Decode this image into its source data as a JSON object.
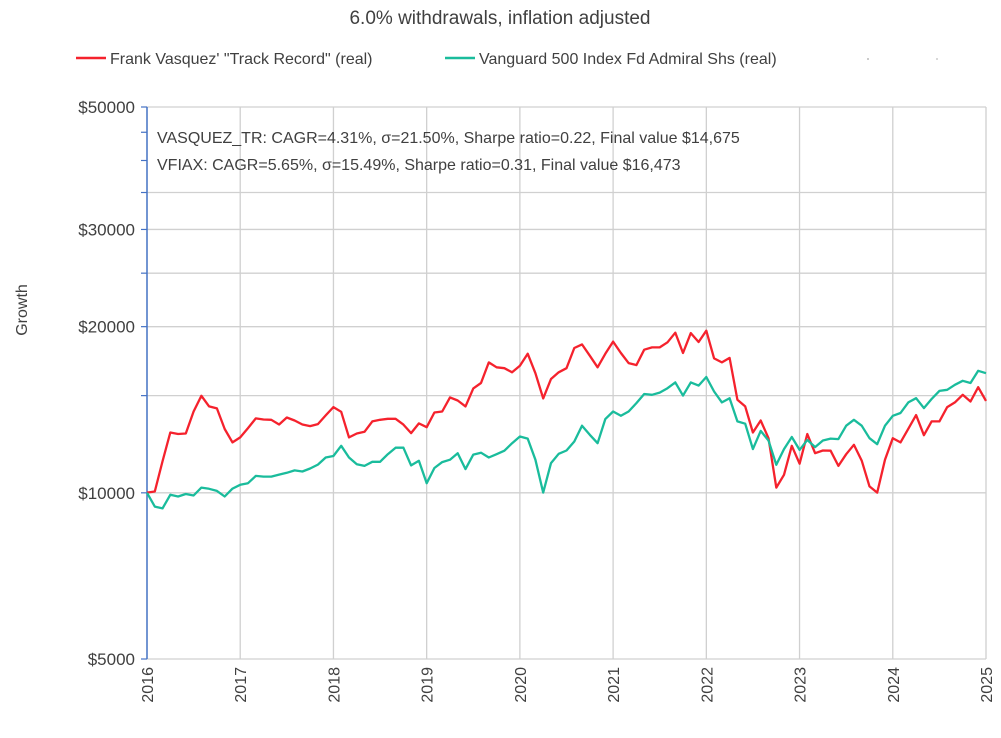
{
  "chart_data": {
    "type": "line",
    "title": "6.0% withdrawals, inflation adjusted",
    "ylabel": "Growth",
    "xlabel": "",
    "y_scale": "log",
    "ylim": [
      5000,
      50000
    ],
    "xlim": [
      "2016-01",
      "2025-01"
    ],
    "grid": true,
    "legend_position": "top",
    "y_ticks": [
      {
        "value": 5000,
        "label": "$5000"
      },
      {
        "value": 10000,
        "label": "$10000"
      },
      {
        "value": 20000,
        "label": "$20000"
      },
      {
        "value": 30000,
        "label": "$30000"
      },
      {
        "value": 50000,
        "label": "$50000"
      }
    ],
    "x_ticks": [
      "2016",
      "2017",
      "2018",
      "2019",
      "2020",
      "2021",
      "2022",
      "2023",
      "2024",
      "2025"
    ],
    "annotations": [
      "VASQUEZ_TR: CAGR=4.31%, σ=21.50%, Sharpe ratio=0.22, Final value $14,675",
      "VFIAX: CAGR=5.65%, σ=15.49%, Sharpe ratio=0.31, Final value $16,473"
    ],
    "x": [
      "2016-01",
      "2016-02",
      "2016-03",
      "2016-04",
      "2016-05",
      "2016-06",
      "2016-07",
      "2016-08",
      "2016-09",
      "2016-10",
      "2016-11",
      "2016-12",
      "2017-01",
      "2017-02",
      "2017-03",
      "2017-04",
      "2017-05",
      "2017-06",
      "2017-07",
      "2017-08",
      "2017-09",
      "2017-10",
      "2017-11",
      "2017-12",
      "2018-01",
      "2018-02",
      "2018-03",
      "2018-04",
      "2018-05",
      "2018-06",
      "2018-07",
      "2018-08",
      "2018-09",
      "2018-10",
      "2018-11",
      "2018-12",
      "2019-01",
      "2019-02",
      "2019-03",
      "2019-04",
      "2019-05",
      "2019-06",
      "2019-07",
      "2019-08",
      "2019-09",
      "2019-10",
      "2019-11",
      "2019-12",
      "2020-01",
      "2020-02",
      "2020-03",
      "2020-04",
      "2020-05",
      "2020-06",
      "2020-07",
      "2020-08",
      "2020-09",
      "2020-10",
      "2020-11",
      "2020-12",
      "2021-01",
      "2021-02",
      "2021-03",
      "2021-04",
      "2021-05",
      "2021-06",
      "2021-07",
      "2021-08",
      "2021-09",
      "2021-10",
      "2021-11",
      "2021-12",
      "2022-01",
      "2022-02",
      "2022-03",
      "2022-04",
      "2022-05",
      "2022-06",
      "2022-07",
      "2022-08",
      "2022-09",
      "2022-10",
      "2022-11",
      "2022-12",
      "2023-01",
      "2023-02",
      "2023-03",
      "2023-04",
      "2023-05",
      "2023-06",
      "2023-07",
      "2023-08",
      "2023-09",
      "2023-10",
      "2023-11",
      "2023-12",
      "2024-01",
      "2024-02",
      "2024-03",
      "2024-04",
      "2024-05",
      "2024-06",
      "2024-07",
      "2024-08",
      "2024-09",
      "2024-10",
      "2024-11",
      "2024-12",
      "2025-01"
    ],
    "series": [
      {
        "name": "Frank Vasquez' \"Track Record\" (real)",
        "color": "#f5222d",
        "values": [
          10010,
          10055,
          11400,
          12860,
          12780,
          12810,
          14040,
          14990,
          14340,
          14220,
          13050,
          12340,
          12600,
          13100,
          13640,
          13580,
          13560,
          13300,
          13690,
          13520,
          13300,
          13210,
          13320,
          13810,
          14300,
          14020,
          12600,
          12810,
          12900,
          13470,
          13560,
          13620,
          13620,
          13290,
          12830,
          13360,
          13150,
          13980,
          14040,
          14890,
          14700,
          14340,
          15460,
          15810,
          17230,
          16880,
          16820,
          16530,
          16990,
          17870,
          16470,
          14830,
          16080,
          16530,
          16820,
          18300,
          18570,
          17720,
          16880,
          17860,
          18790,
          17920,
          17180,
          17040,
          18170,
          18340,
          18340,
          18740,
          19500,
          17920,
          19470,
          18760,
          19670,
          17520,
          17230,
          17560,
          14750,
          14340,
          12860,
          13520,
          12560,
          10220,
          10780,
          12170,
          11290,
          12780,
          11800,
          11930,
          11920,
          11190,
          11750,
          12220,
          11440,
          10270,
          10010,
          11480,
          12560,
          12340,
          13060,
          13830,
          12720,
          13470,
          13470,
          14300,
          14580,
          15050,
          14640,
          15540,
          14675
        ]
      },
      {
        "name": "Vanguard 500 Index Fd Admiral Shs (real)",
        "color": "#1abc9c",
        "values": [
          10000,
          9440,
          9370,
          9920,
          9850,
          9950,
          9890,
          10220,
          10170,
          10080,
          9850,
          10180,
          10340,
          10410,
          10730,
          10700,
          10700,
          10790,
          10870,
          10980,
          10930,
          11070,
          11250,
          11590,
          11660,
          12170,
          11590,
          11270,
          11190,
          11380,
          11380,
          11750,
          12070,
          12070,
          11210,
          11430,
          10410,
          11090,
          11370,
          11480,
          11800,
          11040,
          11730,
          11820,
          11590,
          11750,
          11920,
          12300,
          12650,
          12540,
          11480,
          10010,
          11320,
          11770,
          11930,
          12390,
          13230,
          12740,
          12300,
          13600,
          14040,
          13790,
          14040,
          14540,
          15100,
          15050,
          15190,
          15470,
          15850,
          15000,
          15850,
          15640,
          16210,
          15260,
          14580,
          14840,
          13470,
          13340,
          12000,
          12950,
          12440,
          11240,
          12000,
          12620,
          11960,
          12470,
          12100,
          12440,
          12540,
          12510,
          13230,
          13560,
          13230,
          12560,
          12250,
          13230,
          13790,
          13950,
          14580,
          14840,
          14240,
          14790,
          15300,
          15370,
          15690,
          15960,
          15810,
          16640,
          16473
        ]
      }
    ],
    "axis_color": "#4472c4",
    "grid_color": "#d0d0d0"
  }
}
